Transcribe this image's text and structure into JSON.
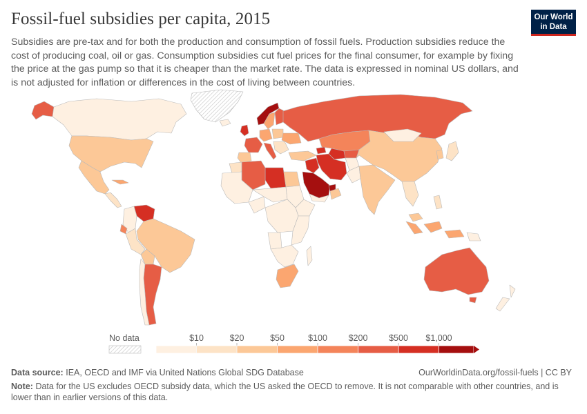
{
  "title": "Fossil-fuel subsidies per capita, 2015",
  "subtitle": "Subsidies are pre-tax and for both the production and consumption of fossil fuels. Production subsidies reduce the cost of producing coal, oil or gas. Consumption subsidies cut fuel prices for the final consumer, for example by fixing the price at the gas pump so that it is cheaper than the market rate. The data is expressed in nominal US dollars, and is not adjusted for inflation or differences in the cost of living between countries.",
  "logo": {
    "line1": "Our World",
    "line2": "in Data"
  },
  "legend": {
    "no_data_label": "No data",
    "bins": [
      {
        "label": "$10",
        "color": "#fef0e1"
      },
      {
        "label": "$20",
        "color": "#fde3c6"
      },
      {
        "label": "$50",
        "color": "#fcc897"
      },
      {
        "label": "$100",
        "color": "#fba670"
      },
      {
        "label": "$200",
        "color": "#f4845a"
      },
      {
        "label": "$500",
        "color": "#e65d45"
      },
      {
        "label": "$1,000",
        "color": "#d52f23"
      },
      {
        "label": "",
        "color": "#a50f0f"
      }
    ]
  },
  "source": {
    "label": "Data source:",
    "text": "IEA, OECD and IMF via United Nations Global SDG Database"
  },
  "url": "OurWorldinData.org/fossil-fuels | CC BY",
  "note": {
    "label": "Note:",
    "text": "Data for the US excludes OECD subsidy data, which the US asked the OECD to remove. It is not comparable with other countries, and is lower than in earlier versions of this data."
  },
  "colors": {
    "no_data": "#ffffff",
    "low": "#fef0e1",
    "border": "#b9b9b9"
  }
}
